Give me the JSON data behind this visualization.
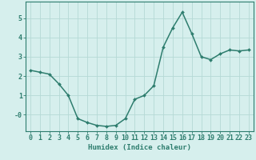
{
  "x": [
    0,
    1,
    2,
    3,
    4,
    5,
    6,
    7,
    8,
    9,
    10,
    11,
    12,
    13,
    14,
    15,
    16,
    17,
    18,
    19,
    20,
    21,
    22,
    23
  ],
  "y": [
    2.3,
    2.2,
    2.1,
    1.6,
    1.0,
    -0.2,
    -0.4,
    -0.55,
    -0.6,
    -0.55,
    -0.2,
    0.8,
    1.0,
    1.5,
    3.5,
    4.5,
    5.3,
    4.2,
    3.0,
    2.85,
    3.15,
    3.35,
    3.3,
    3.35
  ],
  "line_color": "#2e7d6e",
  "marker": "D",
  "marker_size": 2.0,
  "bg_color": "#d6efed",
  "grid_color": "#b5d9d6",
  "axis_color": "#2e7d6e",
  "xlabel": "Humidex (Indice chaleur)",
  "xlim": [
    -0.5,
    23.5
  ],
  "ylim": [
    -0.85,
    5.85
  ],
  "xlabel_fontsize": 6.5,
  "tick_fontsize": 6.0,
  "line_width": 1.1
}
